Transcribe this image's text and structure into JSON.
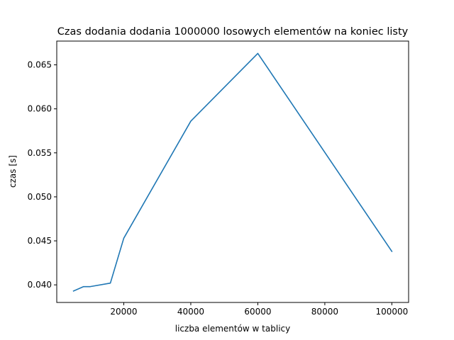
{
  "chart_data": {
    "type": "line",
    "title": "Czas dodania dodania 1000000 losowych elementów na koniec listy",
    "xlabel": "liczba elementów w tablicy",
    "ylabel": "czas [s]",
    "xlim": [
      0,
      105000
    ],
    "ylim": [
      0.038,
      0.0677
    ],
    "x_ticks": [
      20000,
      40000,
      60000,
      80000,
      100000
    ],
    "x_tick_labels": [
      "20000",
      "40000",
      "60000",
      "80000",
      "100000"
    ],
    "y_ticks": [
      0.04,
      0.045,
      0.05,
      0.055,
      0.06,
      0.065
    ],
    "y_tick_labels": [
      "0.040",
      "0.045",
      "0.050",
      "0.055",
      "0.060",
      "0.065"
    ],
    "grid": false,
    "series": [
      {
        "color": "#1f77b4",
        "x": [
          5000,
          8000,
          10000,
          16000,
          20000,
          40000,
          60000,
          100000
        ],
        "y": [
          0.0393,
          0.0398,
          0.0398,
          0.0402,
          0.0453,
          0.0586,
          0.0663,
          0.0438
        ]
      }
    ]
  }
}
